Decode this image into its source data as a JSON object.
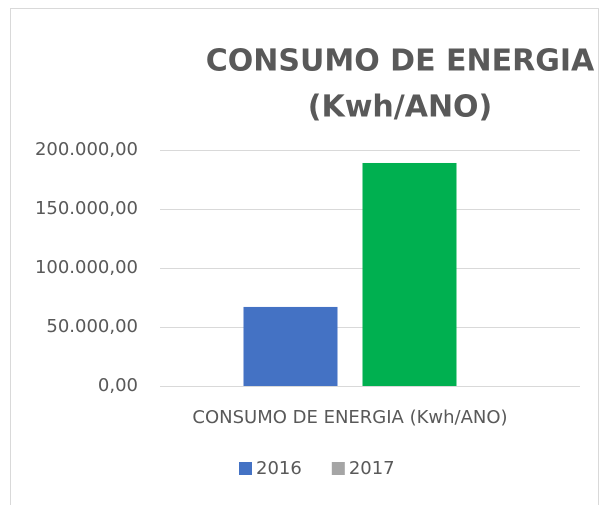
{
  "chart_data": {
    "type": "bar",
    "title": [
      "CONSUMO DE ENERGIA",
      "(Kwh/ANO)"
    ],
    "categories": [
      "CONSUMO DE ENERGIA (Kwh/ANO)"
    ],
    "series": [
      {
        "name": "2016",
        "color": "#4472c4",
        "legend_color": "#4472c4",
        "values": [
          67000
        ]
      },
      {
        "name": "2017",
        "color": "#00b050",
        "legend_color": "#a5a5a5",
        "values": [
          189000
        ]
      }
    ],
    "ylim": [
      0,
      200000
    ],
    "yticks": [
      {
        "value": 0,
        "label": "0,00"
      },
      {
        "value": 50000,
        "label": "50.000,00"
      },
      {
        "value": 100000,
        "label": "100.000,00"
      },
      {
        "value": 150000,
        "label": "150.000,00"
      },
      {
        "value": 200000,
        "label": "200.000,00"
      }
    ],
    "grid": true,
    "legend": "bottom"
  }
}
